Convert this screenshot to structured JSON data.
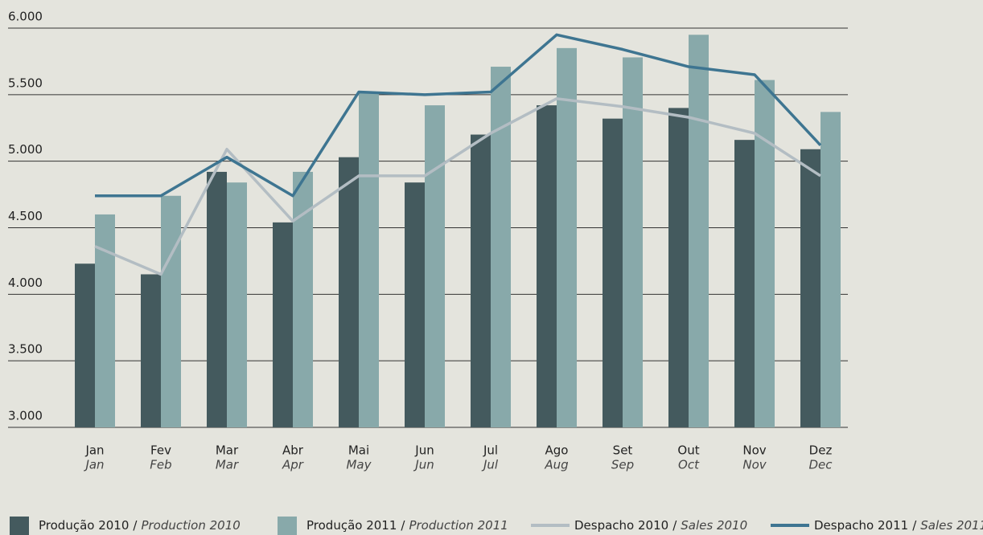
{
  "chart_data": {
    "type": "bar",
    "categories": [
      "Jan",
      "Fev",
      "Mar",
      "Abr",
      "Mai",
      "Jun",
      "Jul",
      "Ago",
      "Set",
      "Out",
      "Nov",
      "Dez"
    ],
    "categories_alt": [
      "Jan",
      "Feb",
      "Mar",
      "Apr",
      "May",
      "Jun",
      "Jul",
      "Aug",
      "Sep",
      "Oct",
      "Nov",
      "Dec"
    ],
    "legend_separator": "/",
    "series": [
      {
        "name": "Produção 2010",
        "name_alt": "Production 2010",
        "type": "bar",
        "color": "#445a5e",
        "values": [
          4230,
          4150,
          4920,
          4540,
          5030,
          4840,
          5200,
          5420,
          5320,
          5400,
          5160,
          5090
        ]
      },
      {
        "name": "Produção 2011",
        "name_alt": "Production 2011",
        "type": "bar",
        "color": "#88a9aa",
        "values": [
          4600,
          4740,
          4840,
          4920,
          5520,
          5420,
          5710,
          5850,
          5780,
          5950,
          5610,
          5370
        ]
      },
      {
        "name": "Despacho 2010",
        "name_alt": "Sales 2010",
        "type": "line",
        "color": "#b3bdc3",
        "values": [
          4360,
          4150,
          5090,
          4550,
          4890,
          4890,
          5210,
          5470,
          5410,
          5330,
          5210,
          4890
        ]
      },
      {
        "name": "Despacho 2011",
        "name_alt": "Sales 2011",
        "type": "line",
        "color": "#3e7591",
        "values": [
          4740,
          4740,
          5030,
          4740,
          5520,
          5500,
          5520,
          5950,
          5840,
          5710,
          5650,
          5120
        ]
      }
    ],
    "ylim": [
      3000,
      6000
    ],
    "yticks": [
      {
        "value": 3000,
        "label": "3.000"
      },
      {
        "value": 3500,
        "label": "3.500"
      },
      {
        "value": 4000,
        "label": "4.000"
      },
      {
        "value": 4500,
        "label": "4.500"
      },
      {
        "value": 5000,
        "label": "5.000"
      },
      {
        "value": 5500,
        "label": "5.500"
      },
      {
        "value": 6000,
        "label": "6.000"
      }
    ],
    "grid": true
  }
}
